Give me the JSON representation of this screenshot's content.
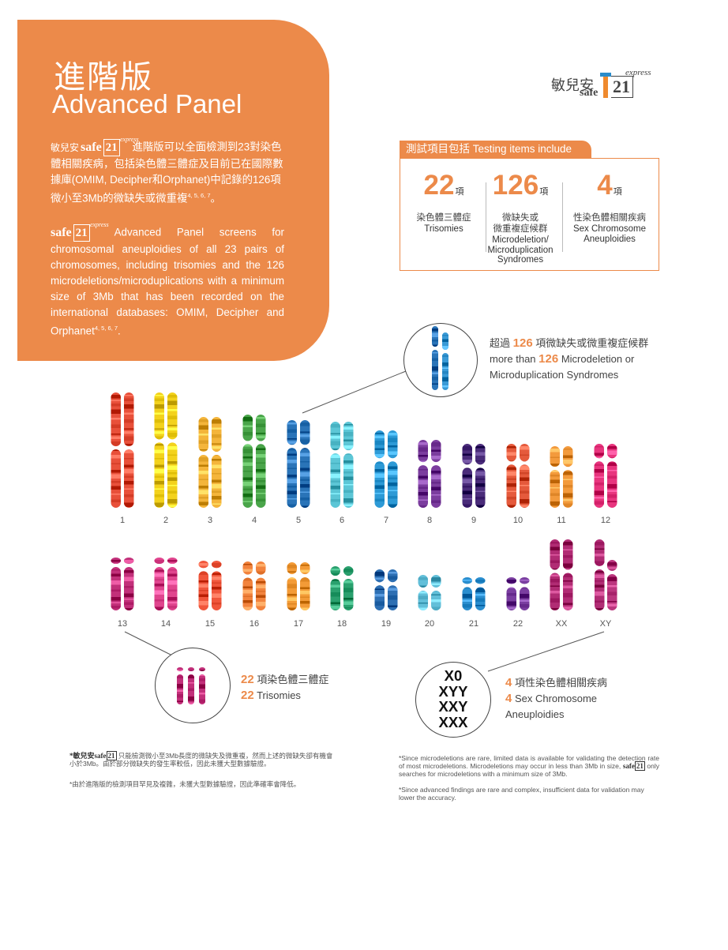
{
  "intro": {
    "title_zh": "進階版",
    "title_en": "Advanced Panel",
    "logo_zh": "敏兒安",
    "logo_safe": "safe",
    "logo_21": "21",
    "logo_express": "express",
    "para_zh": "進階版可以全面檢測到23對染色體相關疾病，包括染色體三體症及目前已在國際數據庫(OMIM, Decipher和Orphanet)中記錄的126項微小至3Mb的微缺失或微重複",
    "para_zh_refs": "4, 5, 6, 7",
    "para_zh_end": "。",
    "para_en": "Advanced Panel screens for chromosomal aneuploidies of all 23 pairs of chromosomes, including trisomies and the 126 microdeletions/microduplications with a minimum size of 3Mb that has been recorded on the international databases: OMIM, Decipher and Orphanet",
    "para_en_refs": "4, 5, 6, 7",
    "para_en_end": "."
  },
  "logo": {
    "zh": "敏兒安",
    "safe": "safe",
    "num": "21",
    "express": "express"
  },
  "testing": {
    "header": "測試項目包括 Testing items include",
    "items": [
      {
        "num": "22",
        "unit": "項",
        "zh": "染色體三體症",
        "en": "Trisomies"
      },
      {
        "num": "126",
        "unit": "項",
        "zh": "微缺失或\n微重複症候群",
        "en": "Microdeletion/\nMicroduplication\nSyndromes"
      },
      {
        "num": "4",
        "unit": "項",
        "zh": "性染色體相關疾病",
        "en": "Sex Chromosome\nAneuploidies"
      }
    ]
  },
  "callouts": {
    "c126_pre_zh": "超過",
    "c126_num": "126",
    "c126_post_zh": "項微缺失或微重複症候群",
    "c126_pre_en": "more than",
    "c126_post_en": "Microdeletion or",
    "c126_en_line2": "Microduplication Syndromes",
    "c22_num": "22",
    "c22_zh": "項染色體三體症",
    "c22_en": "Trisomies",
    "c4_num": "4",
    "c4_zh": "項性染色體相關疾病",
    "c4_en": "Sex Chromosome",
    "c4_en2": "Aneuploidies",
    "sex_list": [
      "X0",
      "XYY",
      "XXY",
      "XXX"
    ]
  },
  "chromosomes": {
    "row1_labels": [
      "1",
      "2",
      "3",
      "4",
      "5",
      "6",
      "7",
      "8",
      "9",
      "10",
      "11",
      "12"
    ],
    "row2_labels": [
      "13",
      "14",
      "15",
      "16",
      "17",
      "18",
      "19",
      "20",
      "21",
      "22",
      "XX",
      "XY"
    ],
    "row1_colors": [
      "#e8503a",
      "#f3d21c",
      "#f4b53b",
      "#4aa54a",
      "#2a74b8",
      "#5cc6d6",
      "#2d9ad6",
      "#7b3d9e",
      "#4a2c7a",
      "#e55a3c",
      "#f39a3c",
      "#e8357e"
    ],
    "row2_colors": [
      "#c2307a",
      "#e0458e",
      "#f0563b",
      "#f2833d",
      "#f39b37",
      "#2aa06e",
      "#2d6fb3",
      "#62bfd9",
      "#2a8ecf",
      "#7a3ea0",
      "#b12c74",
      "#b12c74"
    ]
  },
  "footnotes": {
    "zh1": "只能檢測微小至3Mb長度的微缺失及微重複，然而上述的微缺失卻有機會小於3Mb。由於部分微缺失的發生率較低，因此未獲大型數據驗證。",
    "zh2": "*由於進階版的檢測項目罕見及複雜，未獲大型數據驗證，因此準確率會降低。",
    "en1_a": "*Since microdeletions are rare, limited data is available for validating the detection rate of most microdeletions. Microdeletions may occur in less than 3Mb in size,",
    "en1_b": "only searches for microdeletions with a minimum size of 3Mb.",
    "en2": "*Since advanced findings are rare and complex, insufficient data for validation may lower the accuracy."
  }
}
